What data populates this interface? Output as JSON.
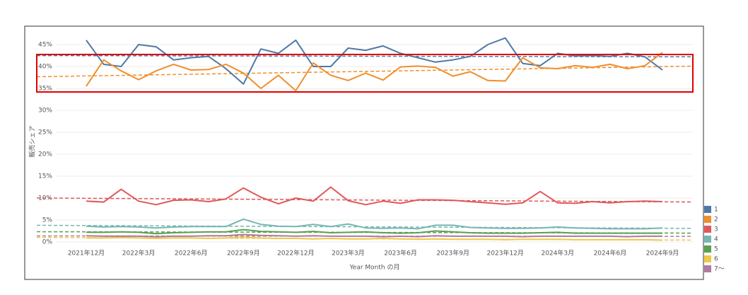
{
  "chart_data": {
    "type": "line",
    "y_label": "販売シェア",
    "x_label": "Year Month の月",
    "categories": [
      "2021年12月",
      null,
      null,
      "2022年3月",
      null,
      null,
      "2022年6月",
      null,
      null,
      "2022年9月",
      null,
      null,
      "2022年12月",
      null,
      null,
      "2023年3月",
      null,
      null,
      "2023年6月",
      null,
      null,
      "2023年9月",
      null,
      null,
      "2023年12月",
      null,
      null,
      "2024年3月",
      null,
      null,
      "2024年6月",
      null,
      null,
      "2024年9月"
    ],
    "ylim": [
      0,
      47.5
    ],
    "yticks": [
      {
        "value": 0,
        "label": "0%"
      },
      {
        "value": 5,
        "label": "5%"
      },
      {
        "value": 10,
        "label": "10%"
      },
      {
        "value": 15,
        "label": "15%"
      },
      {
        "value": 20,
        "label": "20%"
      },
      {
        "value": 25,
        "label": "25%"
      },
      {
        "value": 30,
        "label": "30%"
      },
      {
        "value": 35,
        "label": "35%"
      },
      {
        "value": 40,
        "label": "40%"
      },
      {
        "value": 45,
        "label": "45%"
      }
    ],
    "grid": true,
    "trend_lines": true,
    "legend": "bottom-right",
    "series": [
      {
        "name": "1",
        "color": "#4e79a7",
        "values": [
          46,
          40.5,
          40,
          45,
          44.5,
          41.5,
          42,
          42.3,
          39.5,
          36,
          44,
          43,
          46,
          40,
          40,
          44.2,
          43.7,
          44.7,
          43,
          42,
          41,
          41.5,
          42.3,
          45,
          46.5,
          40.7,
          40.2,
          43,
          42.4,
          42.5,
          42.3,
          43,
          42.2,
          39.2
        ]
      },
      {
        "name": "2",
        "color": "#f28e2b",
        "values": [
          35.5,
          41.5,
          39,
          37,
          39,
          40.5,
          39.2,
          39.3,
          40.5,
          38.5,
          35,
          38,
          34.5,
          40.8,
          38,
          36.8,
          38.5,
          36.9,
          39.9,
          40.1,
          39.8,
          37.8,
          38.8,
          36.8,
          36.7,
          42,
          39.7,
          39.5,
          40.2,
          39.8,
          40.5,
          39.5,
          40.2,
          43.2
        ]
      },
      {
        "name": "3",
        "color": "#e15759",
        "values": [
          9.3,
          9.1,
          12,
          9.3,
          8.5,
          9.5,
          9.6,
          9.2,
          9.8,
          12.3,
          10.2,
          8.7,
          10,
          9.3,
          12.5,
          9.4,
          8.5,
          9.3,
          8.8,
          9.6,
          9.6,
          9.5,
          9.2,
          8.9,
          8.6,
          8.9,
          11.5,
          8.9,
          8.8,
          9.2,
          8.9,
          9.2,
          9.3,
          9.2
        ]
      },
      {
        "name": "4",
        "color": "#76b7b2",
        "values": [
          3.6,
          3.4,
          3.5,
          3.4,
          3.2,
          3.4,
          3.5,
          3.5,
          3.5,
          5.2,
          4,
          3.6,
          3.5,
          4,
          3.5,
          4.1,
          3.2,
          3.1,
          3.2,
          3,
          3.8,
          3.8,
          3.3,
          3.2,
          3.1,
          3.1,
          3.2,
          3.4,
          3.2,
          3.1,
          3,
          3,
          3,
          3.2
        ]
      },
      {
        "name": "5",
        "color": "#59a14f",
        "values": [
          2.2,
          2.2,
          2.3,
          2.2,
          1.9,
          2.1,
          2.2,
          2.3,
          2.3,
          2.8,
          2.4,
          2.3,
          2.2,
          2.4,
          2.1,
          2.2,
          2.3,
          2.1,
          2,
          2.1,
          2.5,
          2.3,
          2.1,
          2,
          2,
          2,
          2.1,
          2.2,
          2,
          2,
          2,
          2,
          2,
          2
        ]
      },
      {
        "name": "6",
        "color": "#edc948",
        "values": [
          0.9,
          0.9,
          1,
          0.9,
          0.8,
          0.9,
          0.9,
          0.8,
          0.9,
          1.1,
          0.9,
          0.8,
          0.8,
          0.7,
          0.8,
          0.7,
          0.7,
          0.8,
          0.7,
          0.6,
          0.7,
          0.6,
          0.6,
          0.6,
          0.5,
          0.6,
          0.6,
          0.6,
          0.5,
          0.5,
          0.5,
          0.5,
          0.5,
          0.4
        ]
      },
      {
        "name": "7～",
        "color": "#b07aa1",
        "values": [
          1.4,
          1.3,
          1.3,
          1.3,
          1.2,
          1.3,
          1.3,
          1.4,
          1.4,
          1.7,
          1.5,
          1.4,
          1.3,
          1.4,
          1.3,
          1.3,
          1.3,
          1.2,
          1.3,
          1.2,
          1.4,
          1.3,
          1.3,
          1.3,
          1.3,
          1.2,
          1.3,
          1.3,
          1.3,
          1.3,
          1.3,
          1.2,
          1.3,
          1.3
        ]
      }
    ]
  }
}
